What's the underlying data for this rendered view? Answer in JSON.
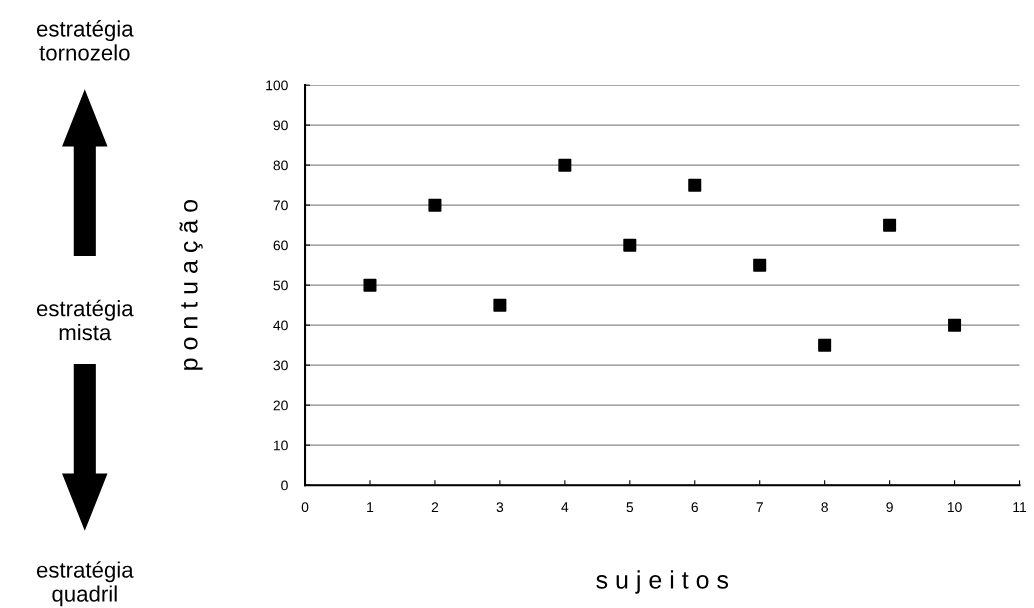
{
  "chart_data": {
    "type": "scatter",
    "xlabel": "s u j e i t o s",
    "ylabel": "p o n t u a ç ã o",
    "annotations": [
      "estratégia\ntornozelo",
      "estratégia\nmista",
      "estratégia\nquadril"
    ],
    "x": [
      1,
      2,
      3,
      4,
      5,
      6,
      7,
      8,
      9,
      10
    ],
    "series": [
      {
        "color": "#000000",
        "values": [
          50,
          70,
          45,
          80,
          60,
          75,
          55,
          35,
          65,
          40
        ]
      }
    ],
    "xlim": [
      0,
      11
    ],
    "xticks": [
      0,
      1,
      2,
      3,
      4,
      5,
      6,
      7,
      8,
      9,
      10,
      11
    ],
    "ylim": [
      0,
      100
    ],
    "yticks": [
      0,
      10,
      20,
      30,
      40,
      50,
      60,
      70,
      80,
      90,
      100
    ],
    "grid": "y",
    "marker": "square"
  }
}
